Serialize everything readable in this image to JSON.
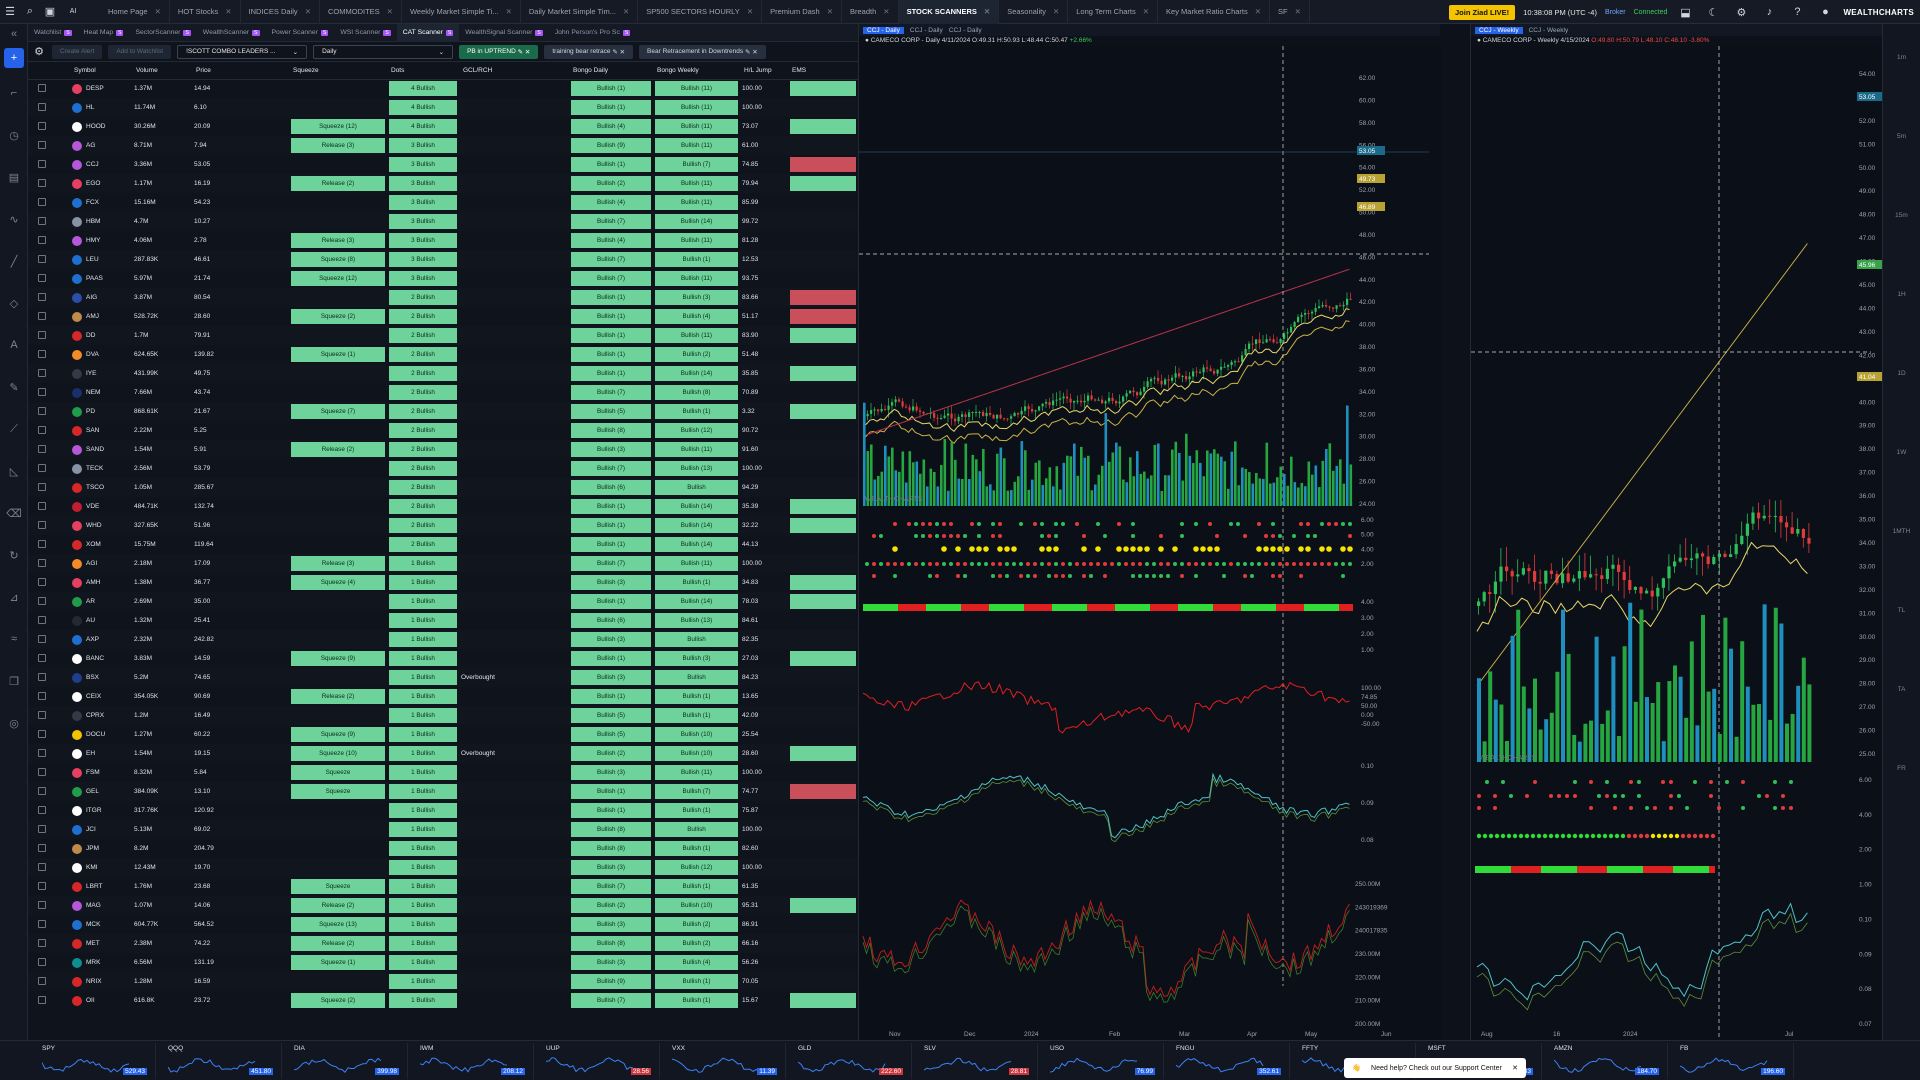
{
  "topbar": {
    "tabs": [
      "Home Page",
      "HOT Stocks",
      "INDICES Daily",
      "COMMODITES",
      "Weekly Market Simple Ti...",
      "Daily Market Simple Tim...",
      "SP500 SECTORS HOURLY",
      "Premium Dash",
      "Breadth",
      "STOCK SCANNERS",
      "Seasonality",
      "Long Term Charts",
      "Key Market Ratio Charts",
      "SF"
    ],
    "active_tab": "STOCK SCANNERS",
    "live_button": "Join Ziad LIVE!",
    "clock": "10:38:08 PM  (UTC -4)",
    "broker": "Broker",
    "connected": "Connected",
    "logo": "WEALTHCHARTS",
    "ai_label": "AI"
  },
  "subtabs": [
    "Watchlist",
    "Heat Map",
    "SectorScanner",
    "WealthScanner",
    "Power Scanner",
    "WSI Scanner",
    "CAT Scanner",
    "WealthSignal Scanner",
    "John Person's Pro Sc"
  ],
  "active_subtab": "CAT Scanner",
  "toolbar": {
    "create_alert": "Create Alert",
    "add_watchlist": "Add to Watchlist",
    "scanner_select": "!SCOTT COMBO LEADERS ...",
    "timeframe_select": "Daily",
    "chip1": "PB in UPTREND",
    "chip2": "training bear retrace",
    "chip3": "Bear Retracement in Downtrends"
  },
  "columns": [
    "Symbol",
    "Volume",
    "Price",
    "Squeeze",
    "Dots",
    "GCL/RCH",
    "Bongo Daily",
    "Bongo Weekly",
    "H/L Jump",
    "EMS"
  ],
  "rows": [
    {
      "sym": "DESP",
      "vol": "1.37M",
      "price": "14.94",
      "sq": "",
      "dots": "4 Bullish",
      "gcl": "",
      "bd": "Bullish (1)",
      "bw": "Bullish (11)",
      "hl": "100.00",
      "ems": "g",
      "c": "#e4405f"
    },
    {
      "sym": "HL",
      "vol": "11.74M",
      "price": "6.10",
      "sq": "",
      "dots": "4 Bullish",
      "gcl": "",
      "bd": "Bullish (1)",
      "bw": "Bullish (11)",
      "hl": "100.00",
      "ems": "",
      "c": "#1f6fd1"
    },
    {
      "sym": "HOOD",
      "vol": "30.26M",
      "price": "20.09",
      "sq": "Squeeze (12)",
      "dots": "4 Bullish",
      "gcl": "",
      "bd": "Bullish (4)",
      "bw": "Bullish (11)",
      "hl": "73.07",
      "ems": "g",
      "c": "#ffffff"
    },
    {
      "sym": "AG",
      "vol": "8.71M",
      "price": "7.94",
      "sq": "Release (3)",
      "dots": "3 Bullish",
      "gcl": "",
      "bd": "Bullish (9)",
      "bw": "Bullish (11)",
      "hl": "61.00",
      "ems": "",
      "c": "#b557d8"
    },
    {
      "sym": "CCJ",
      "vol": "3.36M",
      "price": "53.05",
      "sq": "",
      "dots": "3 Bullish",
      "gcl": "",
      "bd": "Bullish (1)",
      "bw": "Bullish (7)",
      "hl": "74.85",
      "ems": "r",
      "c": "#b557d8"
    },
    {
      "sym": "EGO",
      "vol": "1.17M",
      "price": "16.19",
      "sq": "Release (2)",
      "dots": "3 Bullish",
      "gcl": "",
      "bd": "Bullish (2)",
      "bw": "Bullish (11)",
      "hl": "79.94",
      "ems": "g",
      "c": "#e4405f"
    },
    {
      "sym": "FCX",
      "vol": "15.16M",
      "price": "54.23",
      "sq": "",
      "dots": "3 Bullish",
      "gcl": "",
      "bd": "Bullish (4)",
      "bw": "Bullish (11)",
      "hl": "85.99",
      "ems": "",
      "c": "#1f6fd1"
    },
    {
      "sym": "HBM",
      "vol": "4.7M",
      "price": "10.27",
      "sq": "",
      "dots": "3 Bullish",
      "gcl": "",
      "bd": "Bullish (7)",
      "bw": "Bullish (14)",
      "hl": "99.72",
      "ems": "",
      "c": "#8892a6"
    },
    {
      "sym": "HMY",
      "vol": "4.06M",
      "price": "2.78",
      "sq": "Release (3)",
      "dots": "3 Bullish",
      "gcl": "",
      "bd": "Bullish (4)",
      "bw": "Bullish (11)",
      "hl": "81.28",
      "ems": "",
      "c": "#b557d8"
    },
    {
      "sym": "LEU",
      "vol": "287.83K",
      "price": "46.61",
      "sq": "Squeeze (8)",
      "dots": "3 Bullish",
      "gcl": "",
      "bd": "Bullish (7)",
      "bw": "Bullish (1)",
      "hl": "12.53",
      "ems": "",
      "c": "#1f6fd1"
    },
    {
      "sym": "PAAS",
      "vol": "5.97M",
      "price": "21.74",
      "sq": "Squeeze (12)",
      "dots": "3 Bullish",
      "gcl": "",
      "bd": "Bullish (7)",
      "bw": "Bullish (11)",
      "hl": "93.75",
      "ems": "",
      "c": "#1f6fd1"
    },
    {
      "sym": "AIG",
      "vol": "3.87M",
      "price": "80.54",
      "sq": "",
      "dots": "2 Bullish",
      "gcl": "",
      "bd": "Bullish (1)",
      "bw": "Bullish (3)",
      "hl": "83.66",
      "ems": "r",
      "c": "#2b4ea8"
    },
    {
      "sym": "AMJ",
      "vol": "528.72K",
      "price": "28.60",
      "sq": "Squeeze (2)",
      "dots": "2 Bullish",
      "gcl": "",
      "bd": "Bullish (1)",
      "bw": "Bullish (4)",
      "hl": "51.17",
      "ems": "r",
      "c": "#c08a4a"
    },
    {
      "sym": "DD",
      "vol": "1.7M",
      "price": "79.91",
      "sq": "",
      "dots": "2 Bullish",
      "gcl": "",
      "bd": "Bullish (1)",
      "bw": "Bullish (11)",
      "hl": "83.90",
      "ems": "g",
      "c": "#d62828"
    },
    {
      "sym": "DVA",
      "vol": "624.65K",
      "price": "139.82",
      "sq": "Squeeze (1)",
      "dots": "2 Bullish",
      "gcl": "",
      "bd": "Bullish (1)",
      "bw": "Bullish (2)",
      "hl": "51.48",
      "ems": "",
      "c": "#f28c28"
    },
    {
      "sym": "IYE",
      "vol": "431.99K",
      "price": "49.75",
      "sq": "",
      "dots": "2 Bullish",
      "gcl": "",
      "bd": "Bullish (1)",
      "bw": "Bullish (14)",
      "hl": "35.85",
      "ems": "g",
      "c": "#333a46"
    },
    {
      "sym": "NEM",
      "vol": "7.66M",
      "price": "43.74",
      "sq": "",
      "dots": "2 Bullish",
      "gcl": "",
      "bd": "Bullish (7)",
      "bw": "Bullish (8)",
      "hl": "70.89",
      "ems": "",
      "c": "#1a2f6b"
    },
    {
      "sym": "PD",
      "vol": "868.61K",
      "price": "21.67",
      "sq": "Squeeze (7)",
      "dots": "2 Bullish",
      "gcl": "",
      "bd": "Bullish (5)",
      "bw": "Bullish (1)",
      "hl": "3.32",
      "ems": "g",
      "c": "#1f9d4a"
    },
    {
      "sym": "SAN",
      "vol": "2.22M",
      "price": "5.25",
      "sq": "",
      "dots": "2 Bullish",
      "gcl": "",
      "bd": "Bullish (8)",
      "bw": "Bullish (12)",
      "hl": "90.72",
      "ems": "",
      "c": "#d62828"
    },
    {
      "sym": "SAND",
      "vol": "1.54M",
      "price": "5.91",
      "sq": "Release (2)",
      "dots": "2 Bullish",
      "gcl": "",
      "bd": "Bullish (3)",
      "bw": "Bullish (11)",
      "hl": "91.60",
      "ems": "",
      "c": "#b557d8"
    },
    {
      "sym": "TECK",
      "vol": "2.56M",
      "price": "53.79",
      "sq": "",
      "dots": "2 Bullish",
      "gcl": "",
      "bd": "Bullish (7)",
      "bw": "Bullish (13)",
      "hl": "100.00",
      "ems": "",
      "c": "#8892a6"
    },
    {
      "sym": "TSCO",
      "vol": "1.05M",
      "price": "285.67",
      "sq": "",
      "dots": "2 Bullish",
      "gcl": "",
      "bd": "Bullish (6)",
      "bw": "Bullish",
      "hl": "94.29",
      "ems": "",
      "c": "#d62828"
    },
    {
      "sym": "VDE",
      "vol": "484.71K",
      "price": "132.74",
      "sq": "",
      "dots": "2 Bullish",
      "gcl": "",
      "bd": "Bullish (1)",
      "bw": "Bullish (14)",
      "hl": "35.39",
      "ems": "g",
      "c": "#c01f2f"
    },
    {
      "sym": "WHD",
      "vol": "327.65K",
      "price": "51.96",
      "sq": "",
      "dots": "2 Bullish",
      "gcl": "",
      "bd": "Bullish (1)",
      "bw": "Bullish (14)",
      "hl": "32.22",
      "ems": "g",
      "c": "#e4405f"
    },
    {
      "sym": "XOM",
      "vol": "15.75M",
      "price": "119.64",
      "sq": "",
      "dots": "2 Bullish",
      "gcl": "",
      "bd": "Bullish (1)",
      "bw": "Bullish (14)",
      "hl": "44.13",
      "ems": "",
      "c": "#d62828"
    },
    {
      "sym": "AGI",
      "vol": "2.18M",
      "price": "17.09",
      "sq": "Release (3)",
      "dots": "1 Bullish",
      "gcl": "",
      "bd": "Bullish (7)",
      "bw": "Bullish (11)",
      "hl": "100.00",
      "ems": "",
      "c": "#f28c28"
    },
    {
      "sym": "AMH",
      "vol": "1.38M",
      "price": "36.77",
      "sq": "Squeeze (4)",
      "dots": "1 Bullish",
      "gcl": "",
      "bd": "Bullish (3)",
      "bw": "Bullish (1)",
      "hl": "34.83",
      "ems": "g",
      "c": "#e4405f"
    },
    {
      "sym": "AR",
      "vol": "2.69M",
      "price": "35.00",
      "sq": "",
      "dots": "1 Bullish",
      "gcl": "",
      "bd": "Bullish (1)",
      "bw": "Bullish (14)",
      "hl": "78.03",
      "ems": "g",
      "c": "#1f9d4a"
    },
    {
      "sym": "AU",
      "vol": "1.32M",
      "price": "25.41",
      "sq": "",
      "dots": "1 Bullish",
      "gcl": "",
      "bd": "Bullish (6)",
      "bw": "Bullish (13)",
      "hl": "84.61",
      "ems": "",
      "c": "#222a36"
    },
    {
      "sym": "AXP",
      "vol": "2.32M",
      "price": "242.82",
      "sq": "",
      "dots": "1 Bullish",
      "gcl": "",
      "bd": "Bullish (3)",
      "bw": "Bullish",
      "hl": "82.35",
      "ems": "",
      "c": "#1f6fd1"
    },
    {
      "sym": "BANC",
      "vol": "3.83M",
      "price": "14.59",
      "sq": "Squeeze (9)",
      "dots": "1 Bullish",
      "gcl": "",
      "bd": "Bullish (1)",
      "bw": "Bullish (3)",
      "hl": "27.03",
      "ems": "g",
      "c": "#ffffff"
    },
    {
      "sym": "BSX",
      "vol": "5.2M",
      "price": "74.65",
      "sq": "",
      "dots": "1 Bullish",
      "gcl": "Overbought",
      "bd": "Bullish (3)",
      "bw": "Bullish",
      "hl": "84.23",
      "ems": "",
      "c": "#1f3f8a"
    },
    {
      "sym": "CEIX",
      "vol": "354.05K",
      "price": "90.69",
      "sq": "Release (2)",
      "dots": "1 Bullish",
      "gcl": "",
      "bd": "Bullish (1)",
      "bw": "Bullish (1)",
      "hl": "13.65",
      "ems": "",
      "c": "#ffffff"
    },
    {
      "sym": "CPRX",
      "vol": "1.2M",
      "price": "16.49",
      "sq": "",
      "dots": "1 Bullish",
      "gcl": "",
      "bd": "Bullish (5)",
      "bw": "Bullish (1)",
      "hl": "42.09",
      "ems": "",
      "c": "#333a46"
    },
    {
      "sym": "DOCU",
      "vol": "1.27M",
      "price": "60.22",
      "sq": "Squeeze (9)",
      "dots": "1 Bullish",
      "gcl": "",
      "bd": "Bullish (5)",
      "bw": "Bullish (10)",
      "hl": "25.54",
      "ems": "",
      "c": "#f5c400"
    },
    {
      "sym": "EH",
      "vol": "1.54M",
      "price": "19.15",
      "sq": "Squeeze (10)",
      "dots": "1 Bullish",
      "gcl": "Overbought",
      "bd": "Bullish (2)",
      "bw": "Bullish (10)",
      "hl": "28.60",
      "ems": "g",
      "c": "#ffffff"
    },
    {
      "sym": "FSM",
      "vol": "8.32M",
      "price": "5.84",
      "sq": "Squeeze",
      "dots": "1 Bullish",
      "gcl": "",
      "bd": "Bullish (3)",
      "bw": "Bullish (11)",
      "hl": "100.00",
      "ems": "",
      "c": "#e4405f"
    },
    {
      "sym": "GEL",
      "vol": "384.09K",
      "price": "13.10",
      "sq": "Squeeze",
      "dots": "1 Bullish",
      "gcl": "",
      "bd": "Bullish (1)",
      "bw": "Bullish (7)",
      "hl": "74.77",
      "ems": "r",
      "c": "#1f9d4a"
    },
    {
      "sym": "ITGR",
      "vol": "317.76K",
      "price": "120.92",
      "sq": "",
      "dots": "1 Bullish",
      "gcl": "",
      "bd": "Bullish (1)",
      "bw": "Bullish (1)",
      "hl": "75.87",
      "ems": "",
      "c": "#ffffff"
    },
    {
      "sym": "JCI",
      "vol": "5.13M",
      "price": "69.02",
      "sq": "",
      "dots": "1 Bullish",
      "gcl": "",
      "bd": "Bullish (8)",
      "bw": "Bullish",
      "hl": "100.00",
      "ems": "",
      "c": "#1f6fd1"
    },
    {
      "sym": "JPM",
      "vol": "8.2M",
      "price": "204.79",
      "sq": "",
      "dots": "1 Bullish",
      "gcl": "",
      "bd": "Bullish (8)",
      "bw": "Bullish (1)",
      "hl": "82.60",
      "ems": "",
      "c": "#c08a4a"
    },
    {
      "sym": "KMI",
      "vol": "12.43M",
      "price": "19.70",
      "sq": "",
      "dots": "1 Bullish",
      "gcl": "",
      "bd": "Bullish (3)",
      "bw": "Bullish (12)",
      "hl": "100.00",
      "ems": "",
      "c": "#ffffff"
    },
    {
      "sym": "LBRT",
      "vol": "1.76M",
      "price": "23.68",
      "sq": "Squeeze",
      "dots": "1 Bullish",
      "gcl": "",
      "bd": "Bullish (7)",
      "bw": "Bullish (1)",
      "hl": "61.35",
      "ems": "",
      "c": "#d62828"
    },
    {
      "sym": "MAG",
      "vol": "1.07M",
      "price": "14.06",
      "sq": "Release (2)",
      "dots": "1 Bullish",
      "gcl": "",
      "bd": "Bullish (2)",
      "bw": "Bullish (10)",
      "hl": "95.31",
      "ems": "g",
      "c": "#b557d8"
    },
    {
      "sym": "MCK",
      "vol": "604.77K",
      "price": "564.52",
      "sq": "Squeeze (13)",
      "dots": "1 Bullish",
      "gcl": "",
      "bd": "Bullish (3)",
      "bw": "Bullish (2)",
      "hl": "86.91",
      "ems": "",
      "c": "#1f6fd1"
    },
    {
      "sym": "MET",
      "vol": "2.38M",
      "price": "74.22",
      "sq": "Release (2)",
      "dots": "1 Bullish",
      "gcl": "",
      "bd": "Bullish (8)",
      "bw": "Bullish (2)",
      "hl": "66.16",
      "ems": "",
      "c": "#d62828"
    },
    {
      "sym": "MRK",
      "vol": "6.56M",
      "price": "131.19",
      "sq": "Squeeze (1)",
      "dots": "1 Bullish",
      "gcl": "",
      "bd": "Bullish (3)",
      "bw": "Bullish (4)",
      "hl": "56.26",
      "ems": "",
      "c": "#0f8f8f"
    },
    {
      "sym": "NRIX",
      "vol": "1.28M",
      "price": "16.59",
      "sq": "",
      "dots": "1 Bullish",
      "gcl": "",
      "bd": "Bullish (9)",
      "bw": "Bullish (1)",
      "hl": "70.05",
      "ems": "",
      "c": "#d62828"
    },
    {
      "sym": "OII",
      "vol": "616.8K",
      "price": "23.72",
      "sq": "Squeeze (2)",
      "dots": "1 Bullish",
      "gcl": "",
      "bd": "Bullish (7)",
      "bw": "Bullish (1)",
      "hl": "15.67",
      "ems": "g",
      "c": "#d62828"
    }
  ],
  "chart1": {
    "tabs": [
      "CCJ - Daily",
      "CCJ - Daily",
      "CCJ - Daily"
    ],
    "title": "CAMECO CORP",
    "interval": "Daily",
    "date": "4/11/2024",
    "ohlc": "O:49.31 H:50.93 L:48.44 C:50.47",
    "change": "+2.66%",
    "price_axis": [
      "62.00",
      "60.00",
      "58.00",
      "56.00",
      "54.00",
      "52.00",
      "50.00",
      "48.00",
      "46.00",
      "44.00",
      "42.00",
      "40.00",
      "38.00",
      "36.00",
      "34.00",
      "32.00",
      "30.00",
      "28.00",
      "26.00",
      "24.00"
    ],
    "price_tags": [
      "53.05",
      "49.73",
      "46.89"
    ],
    "x_axis": [
      "Nov",
      "Dec",
      "2024",
      "Feb",
      "Mar",
      "Apr",
      "May",
      "Jun"
    ],
    "ind_axis1": [
      "6.00",
      "5.00",
      "4.00",
      "2.00"
    ],
    "ind_axis2": [
      "4.00",
      "3.00",
      "2.00",
      "1.00"
    ],
    "ind_axis3": [
      "100.00",
      "74.85",
      "50.00",
      "0.00",
      "-50.00"
    ],
    "ind_axis4": [
      "0.10",
      "0.09",
      "0.08"
    ],
    "ind_axis5": [
      "250.00M",
      "243019369",
      "240017835",
      "230.00M",
      "220.00M",
      "210.00M",
      "200.00M"
    ],
    "watermark": "WEALTHCHARTS"
  },
  "chart2": {
    "tabs": [
      "CCJ - Weekly",
      "CCJ - Weekly"
    ],
    "title": "CAMECO CORP",
    "interval": "Weekly",
    "date": "4/15/2024",
    "ohlc": "O:49.80 H:50.79 L:48.10 C:48.10",
    "change": "-3.80%",
    "price_axis": [
      "54.00",
      "53.00",
      "52.00",
      "51.00",
      "50.00",
      "49.00",
      "48.00",
      "47.00",
      "46.00",
      "45.00",
      "44.00",
      "43.00",
      "42.00",
      "41.00",
      "40.00",
      "39.00",
      "38.00",
      "37.00",
      "36.00",
      "35.00",
      "34.00",
      "33.00",
      "32.00",
      "31.00",
      "30.00",
      "29.00",
      "28.00",
      "27.00",
      "26.00",
      "25.00"
    ],
    "price_tags": [
      "53.05",
      "45.96",
      "41.04"
    ],
    "x_axis": [
      "Aug",
      "16",
      "2024",
      "Jul"
    ],
    "ind_axis": [
      "6.00",
      "4.00",
      "2.00",
      "1.00",
      "0.10",
      "0.09",
      "0.08",
      "0.07"
    ],
    "watermark": "WEALTHCHARTS"
  },
  "right_strip": [
    "1m",
    "5m",
    "15m",
    "1H",
    "1D",
    "1W",
    "1MTH",
    "TL",
    "TA",
    "FR"
  ],
  "tickers": [
    {
      "n": "SPY",
      "p": "529.43"
    },
    {
      "n": "QQQ",
      "p": "451.80"
    },
    {
      "n": "DIA",
      "p": "399.98"
    },
    {
      "n": "IWM",
      "p": "208.12"
    },
    {
      "n": "UUP",
      "p": "28.56"
    },
    {
      "n": "VXX",
      "p": "11.39"
    },
    {
      "n": "GLD",
      "p": "222.60"
    },
    {
      "n": "SLV",
      "p": "28.81"
    },
    {
      "n": "USO",
      "p": "76.99"
    },
    {
      "n": "FNGU",
      "p": "352.61"
    },
    {
      "n": "FFTY",
      "p": "32.90"
    },
    {
      "n": "MSFT",
      "p": "424.33"
    },
    {
      "n": "AMZN",
      "p": "184.70"
    },
    {
      "n": "FB",
      "p": "196.60"
    }
  ],
  "help_text": "Need help? Check out our Support Center",
  "colors": {
    "bull": "#6dd39a",
    "bear": "#c9505a",
    "accent": "#2563eb"
  }
}
